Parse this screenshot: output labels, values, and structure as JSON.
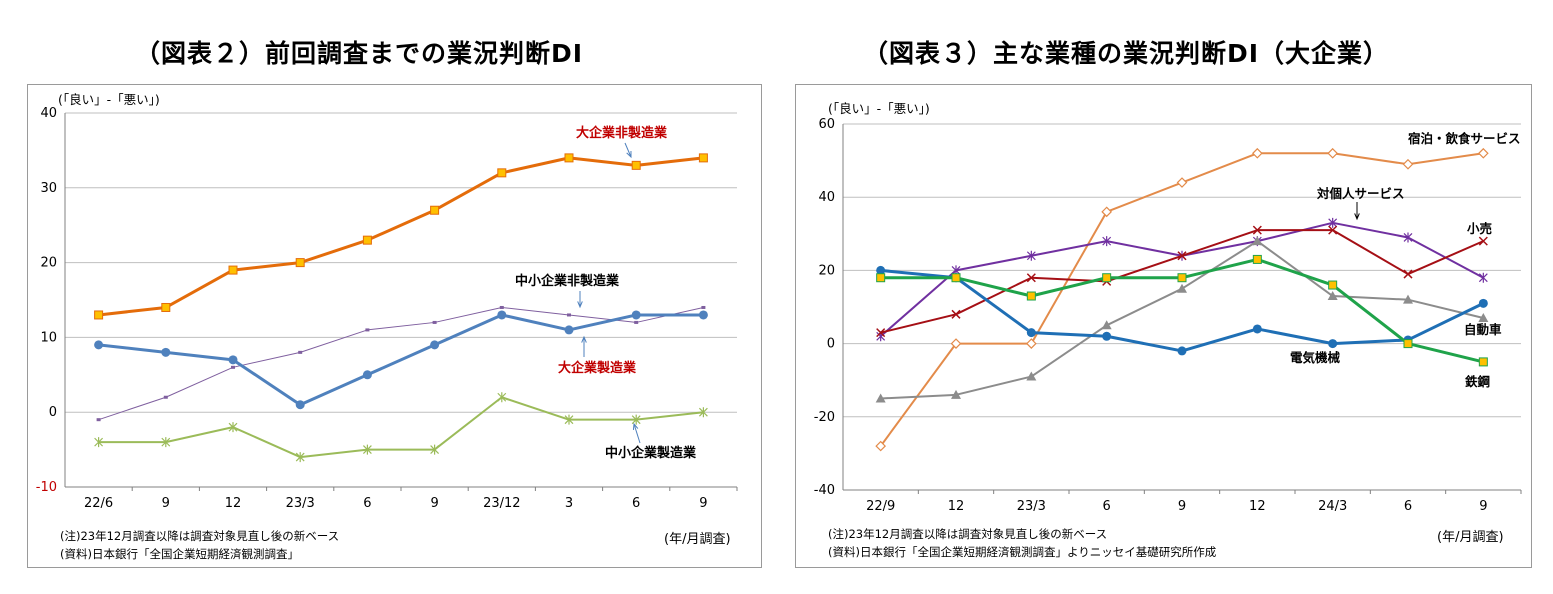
{
  "titles": {
    "left": "（図表２）前回調査までの業況判断DI",
    "right": "（図表３）主な業種の業況判断DI（大企業）"
  },
  "footnotes": {
    "left_note": "(注)23年12月調査以降は調査対象見直し後の新ベース",
    "left_source": "(資料)日本銀行「全国企業短期経済観測調査」",
    "left_unit": "(年/月調査)",
    "right_note": "(注)23年12月調査以降は調査対象見直し後の新ベース",
    "right_source": "(資料)日本銀行「全国企業短期経済観測調査」よりニッセイ基礎研究所作成",
    "right_unit": "(年/月調査)"
  },
  "chart_data": [
    {
      "type": "line",
      "title": "（図表２）前回調査までの業況判断DI",
      "ylabel": "(「良い」-「悪い」)",
      "xlabel": "(年/月調査)",
      "ylim": [
        -10,
        40
      ],
      "yticks": [
        -10,
        0,
        10,
        20,
        30,
        40
      ],
      "negative_tick_color": "#c00000",
      "grid": true,
      "categories": [
        "22/6",
        "9",
        "12",
        "23/3",
        "6",
        "9",
        "23/12",
        "3",
        "6",
        "9"
      ],
      "series": [
        {
          "name": "大企業非製造業",
          "color": "#e46c0a",
          "marker": "square",
          "values": [
            13,
            14,
            19,
            20,
            23,
            27,
            32,
            34,
            33,
            34
          ]
        },
        {
          "name": "中小企業非製造業",
          "color": "#7f5f9f",
          "marker": "dash",
          "values": [
            -1,
            2,
            6,
            8,
            11,
            12,
            14,
            13,
            12,
            14
          ]
        },
        {
          "name": "大企業製造業",
          "color": "#4f81bd",
          "marker": "circle",
          "values": [
            9,
            8,
            7,
            1,
            5,
            9,
            13,
            11,
            13,
            13
          ]
        },
        {
          "name": "中小企業製造業",
          "color": "#9bbb59",
          "marker": "star",
          "values": [
            -4,
            -4,
            -2,
            -6,
            -5,
            -5,
            2,
            -1,
            -1,
            0
          ]
        }
      ],
      "annotations": [
        {
          "text": "大企業非製造業",
          "color": "#c00000"
        },
        {
          "text": "中小企業非製造業",
          "color": "#000000"
        },
        {
          "text": "大企業製造業",
          "color": "#c00000"
        },
        {
          "text": "中小企業製造業",
          "color": "#000000"
        }
      ]
    },
    {
      "type": "line",
      "title": "（図表３）主な業種の業況判断DI（大企業）",
      "ylabel": "(「良い」-「悪い」)",
      "xlabel": "(年/月調査)",
      "ylim": [
        -40,
        60
      ],
      "yticks": [
        -40,
        -20,
        0,
        20,
        40,
        60
      ],
      "grid": true,
      "categories": [
        "22/9",
        "12",
        "23/3",
        "6",
        "9",
        "12",
        "24/3",
        "6",
        "9"
      ],
      "series": [
        {
          "name": "宿泊・飲食サービス",
          "color": "#e38b4a",
          "marker": "diamond",
          "values": [
            -28,
            0,
            0,
            36,
            44,
            52,
            52,
            49,
            52
          ]
        },
        {
          "name": "対個人サービス",
          "color": "#7030a0",
          "marker": "asterisk",
          "values": [
            2,
            20,
            24,
            28,
            24,
            28,
            33,
            29,
            18
          ]
        },
        {
          "name": "小売",
          "color": "#a50f15",
          "marker": "x",
          "values": [
            3,
            8,
            18,
            17,
            24,
            31,
            31,
            19,
            28
          ]
        },
        {
          "name": "自動車",
          "color": "#8c8c8c",
          "marker": "triangle",
          "values": [
            -15,
            -14,
            -9,
            5,
            15,
            28,
            13,
            12,
            7
          ]
        },
        {
          "name": "電気機械",
          "color": "#1f6fb5",
          "marker": "circle",
          "values": [
            20,
            18,
            3,
            2,
            -2,
            4,
            0,
            1,
            11
          ]
        },
        {
          "name": "鉄鋼",
          "color": "#1fa34a",
          "marker": "square",
          "values": [
            18,
            18,
            13,
            18,
            18,
            23,
            16,
            0,
            -5
          ]
        }
      ],
      "annotations": [
        {
          "text": "宿泊・飲食サービス"
        },
        {
          "text": "対個人サービス"
        },
        {
          "text": "小売"
        },
        {
          "text": "自動車"
        },
        {
          "text": "電気機械"
        },
        {
          "text": "鉄鋼"
        }
      ]
    }
  ]
}
